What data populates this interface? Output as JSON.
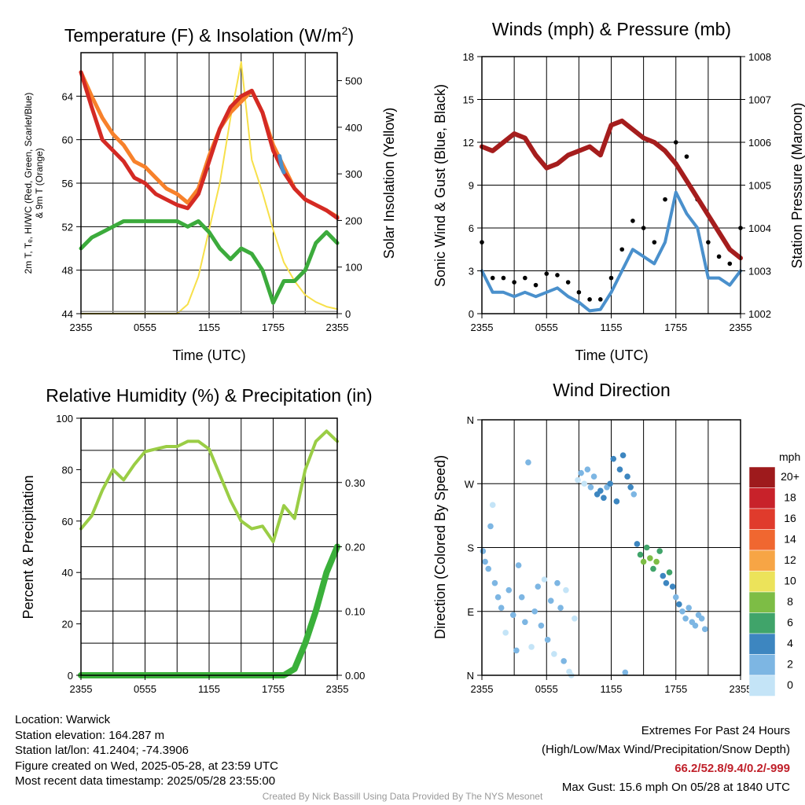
{
  "colors": {
    "red": "#d42a24",
    "orange": "#f7812b",
    "green": "#3cab3c",
    "blue": "#4a90cc",
    "yellow": "#f7e04a",
    "black": "#000000",
    "maroon": "#a51d1d",
    "rh": "#9acd45",
    "precip": "#3ab03a"
  },
  "x_ticks": [
    "2355",
    "0555",
    "1155",
    "1755",
    "2355"
  ],
  "chart_data": [
    {
      "type": "line",
      "title_main": "Temperature (F) & Insolation (W/m",
      "title_sup": "2",
      "title_end": ")",
      "xlabel": "Time (UTC)",
      "ylabel_lines": [
        "2m T, Tₑ, HI/WC (Red, Green, Scarlet/Blue)",
        "& 9m T (Orange)"
      ],
      "y2label": "Solar Insolation (Yellow)",
      "x_range": [
        0,
        24
      ],
      "ylim": [
        44,
        68
      ],
      "y2lim": [
        0,
        560
      ],
      "y_ticks": [
        44,
        48,
        52,
        56,
        60,
        64
      ],
      "y2_ticks": [
        0,
        100,
        200,
        300,
        400,
        500
      ],
      "x": [
        0,
        1,
        2,
        3,
        4,
        5,
        6,
        7,
        8,
        9,
        10,
        11,
        12,
        13,
        14,
        15,
        16,
        17,
        18,
        19,
        20,
        21,
        22,
        23,
        24
      ],
      "series": [
        {
          "name": "2m T (Red)",
          "color": "red",
          "values": [
            66.2,
            63,
            60,
            59,
            58,
            56.5,
            56,
            55,
            54.5,
            54,
            53.7,
            55,
            58,
            61,
            63,
            64,
            64.5,
            62.5,
            59,
            57,
            55.5,
            54.5,
            54,
            53.5,
            52.8
          ]
        },
        {
          "name": "9m T (Orange)",
          "color": "orange",
          "values": [
            66.2,
            64,
            62,
            60.5,
            59.5,
            58,
            57.5,
            56.5,
            55.5,
            55,
            54.2,
            55.5,
            58.5,
            61,
            62.5,
            63.5,
            64.5,
            62.5,
            59.5,
            57.5,
            55.5,
            54.5,
            54,
            53.5,
            52.9
          ]
        },
        {
          "name": "Tₑ (Green)",
          "color": "green",
          "values": [
            50,
            51,
            51.5,
            52,
            52.5,
            52.5,
            52.5,
            52.5,
            52.5,
            52.5,
            52,
            52.5,
            51.5,
            50,
            49,
            50,
            49.5,
            48,
            45,
            47,
            47,
            48,
            50.5,
            51.5,
            50.5
          ]
        },
        {
          "name": "HI/WC (Blue)",
          "color": "blue",
          "x": [
            18.6,
            18.7,
            18.8,
            18.9,
            19.0
          ],
          "values": [
            58.5,
            58,
            57.5,
            57.2,
            57
          ]
        },
        {
          "name": "Solar Insolation (Yellow)",
          "color": "yellow",
          "axis": "y2",
          "values": [
            0,
            0,
            0,
            0,
            0,
            0,
            0,
            0,
            0,
            0,
            20,
            80,
            180,
            280,
            420,
            540,
            330,
            260,
            180,
            110,
            70,
            40,
            25,
            15,
            10
          ]
        }
      ]
    },
    {
      "type": "line",
      "title": "Winds (mph) & Pressure (mb)",
      "xlabel": "Time (UTC)",
      "ylabel": "Sonic Wind & Gust (Blue, Black)",
      "y2label": "Station Pressure (Maroon)",
      "x_range": [
        0,
        24
      ],
      "ylim": [
        0,
        18
      ],
      "y2lim": [
        1002,
        1008
      ],
      "y_ticks": [
        0,
        3,
        6,
        9,
        12,
        15,
        18
      ],
      "y2_ticks": [
        1002,
        1003,
        1004,
        1005,
        1006,
        1007,
        1008
      ],
      "x": [
        0,
        1,
        2,
        3,
        4,
        5,
        6,
        7,
        8,
        9,
        10,
        11,
        12,
        13,
        14,
        15,
        16,
        17,
        18,
        19,
        20,
        21,
        22,
        23,
        24
      ],
      "series": [
        {
          "name": "Sonic Wind (Blue)",
          "color": "blue",
          "values": [
            3,
            1.5,
            1.5,
            1.2,
            1.5,
            1.2,
            1.5,
            1.8,
            1.2,
            0.8,
            0.2,
            0.3,
            1.5,
            3,
            4.5,
            4,
            3.5,
            5,
            8.5,
            7,
            6,
            2.5,
            2.5,
            2,
            3
          ]
        },
        {
          "name": "Gust (Black)",
          "color": "black",
          "kind": "scatter",
          "values": [
            5,
            2.5,
            2.5,
            2.2,
            2.5,
            2,
            2.8,
            2.7,
            2.2,
            1.5,
            1,
            1,
            2.5,
            4.5,
            6.5,
            6,
            5,
            8,
            12,
            11,
            8,
            5,
            4,
            3.5,
            6
          ]
        },
        {
          "name": "Station Pressure (Maroon)",
          "color": "maroon",
          "axis": "y2",
          "values": [
            1005.9,
            1005.8,
            1006,
            1006.2,
            1006.1,
            1005.7,
            1005.4,
            1005.5,
            1005.7,
            1005.8,
            1005.9,
            1005.7,
            1006.4,
            1006.5,
            1006.3,
            1006.1,
            1006,
            1005.8,
            1005.5,
            1005.1,
            1004.7,
            1004.3,
            1003.9,
            1003.5,
            1003.3
          ]
        }
      ]
    },
    {
      "type": "line",
      "title": "Relative Humidity (%) & Precipitation (in)",
      "ylabel": "Percent & Precipitation",
      "x_range": [
        0,
        24
      ],
      "ylim": [
        0,
        100
      ],
      "y2lim": [
        0,
        0.4
      ],
      "y_ticks": [
        0,
        20,
        40,
        60,
        80,
        100
      ],
      "y2_ticks": [
        "0.00",
        "0.10",
        "0.20",
        "0.30"
      ],
      "x": [
        0,
        1,
        2,
        3,
        4,
        5,
        6,
        7,
        8,
        9,
        10,
        11,
        12,
        13,
        14,
        15,
        16,
        17,
        18,
        19,
        20,
        21,
        22,
        23,
        24
      ],
      "series": [
        {
          "name": "Relative Humidity",
          "color": "rh",
          "values": [
            57,
            62,
            72,
            80,
            76,
            82,
            87,
            88,
            89,
            89,
            91,
            91,
            88,
            78,
            68,
            60,
            57,
            58,
            52,
            66,
            61,
            80,
            91,
            95,
            91
          ]
        },
        {
          "name": "Precipitation",
          "color": "precip",
          "axis": "y2",
          "values": [
            0,
            0,
            0,
            0,
            0,
            0,
            0,
            0,
            0,
            0,
            0,
            0,
            0,
            0,
            0,
            0,
            0,
            0,
            0,
            0,
            0.01,
            0.05,
            0.1,
            0.16,
            0.2
          ]
        }
      ]
    },
    {
      "type": "scatter",
      "title": "Wind Direction",
      "ylabel": "Direction (Colored By Speed)",
      "x_range": [
        0,
        24
      ],
      "y_ticks": [
        "N",
        "E",
        "S",
        "W",
        "N"
      ],
      "legend": {
        "unit": "mph",
        "labels": [
          "20+",
          "18",
          "16",
          "14",
          "12",
          "10",
          "8",
          "6",
          "4",
          "2",
          "0"
        ],
        "colors": [
          "#9e1a1c",
          "#c8222a",
          "#e03b2c",
          "#f06730",
          "#f7a545",
          "#ece35a",
          "#7dbd45",
          "#40a46a",
          "#3d86c0",
          "#7db6e3",
          "#c4e4f7"
        ]
      },
      "points": [
        {
          "x": 0.1,
          "dir": 175,
          "spd": 3
        },
        {
          "x": 0.3,
          "dir": 160,
          "spd": 2
        },
        {
          "x": 0.6,
          "dir": 150,
          "spd": 2
        },
        {
          "x": 0.8,
          "dir": 210,
          "spd": 2
        },
        {
          "x": 1.0,
          "dir": 240,
          "spd": 1
        },
        {
          "x": 1.2,
          "dir": 130,
          "spd": 2
        },
        {
          "x": 1.5,
          "dir": 110,
          "spd": 3
        },
        {
          "x": 1.8,
          "dir": 95,
          "spd": 2
        },
        {
          "x": 2.2,
          "dir": 60,
          "spd": 1
        },
        {
          "x": 2.5,
          "dir": 120,
          "spd": 3
        },
        {
          "x": 2.9,
          "dir": 85,
          "spd": 2
        },
        {
          "x": 3.2,
          "dir": 35,
          "spd": 3
        },
        {
          "x": 3.4,
          "dir": 155,
          "spd": 2
        },
        {
          "x": 3.7,
          "dir": 110,
          "spd": 3
        },
        {
          "x": 4.0,
          "dir": 75,
          "spd": 2
        },
        {
          "x": 4.3,
          "dir": 300,
          "spd": 3
        },
        {
          "x": 4.6,
          "dir": 40,
          "spd": 1
        },
        {
          "x": 4.9,
          "dir": 90,
          "spd": 2
        },
        {
          "x": 5.2,
          "dir": 125,
          "spd": 3
        },
        {
          "x": 5.5,
          "dir": 70,
          "spd": 2
        },
        {
          "x": 5.8,
          "dir": 135,
          "spd": 1
        },
        {
          "x": 6.1,
          "dir": 50,
          "spd": 3
        },
        {
          "x": 6.4,
          "dir": 105,
          "spd": 2
        },
        {
          "x": 6.7,
          "dir": 30,
          "spd": 1
        },
        {
          "x": 7.0,
          "dir": 130,
          "spd": 2
        },
        {
          "x": 7.3,
          "dir": 95,
          "spd": 3
        },
        {
          "x": 7.6,
          "dir": 20,
          "spd": 2
        },
        {
          "x": 7.8,
          "dir": 120,
          "spd": 1
        },
        {
          "x": 8.1,
          "dir": 5,
          "spd": 1
        },
        {
          "x": 8.3,
          "dir": 0,
          "spd": 1
        },
        {
          "x": 8.6,
          "dir": 80,
          "spd": 1
        },
        {
          "x": 8.9,
          "dir": 275,
          "spd": 1
        },
        {
          "x": 9.2,
          "dir": 285,
          "spd": 2
        },
        {
          "x": 9.5,
          "dir": 270,
          "spd": 1
        },
        {
          "x": 9.8,
          "dir": 290,
          "spd": 2
        },
        {
          "x": 10.1,
          "dir": 265,
          "spd": 3
        },
        {
          "x": 10.4,
          "dir": 280,
          "spd": 3
        },
        {
          "x": 10.7,
          "dir": 255,
          "spd": 4
        },
        {
          "x": 11.0,
          "dir": 260,
          "spd": 4
        },
        {
          "x": 11.3,
          "dir": 250,
          "spd": 4
        },
        {
          "x": 11.6,
          "dir": 265,
          "spd": 3
        },
        {
          "x": 11.9,
          "dir": 270,
          "spd": 4
        },
        {
          "x": 12.2,
          "dir": 305,
          "spd": 4
        },
        {
          "x": 12.5,
          "dir": 245,
          "spd": 4
        },
        {
          "x": 12.8,
          "dir": 290,
          "spd": 4
        },
        {
          "x": 13.1,
          "dir": 310,
          "spd": 4
        },
        {
          "x": 13.3,
          "dir": 4,
          "spd": 3
        },
        {
          "x": 13.5,
          "dir": 280,
          "spd": 4
        },
        {
          "x": 13.8,
          "dir": 265,
          "spd": 4
        },
        {
          "x": 14.1,
          "dir": 255,
          "spd": 3
        },
        {
          "x": 14.4,
          "dir": 185,
          "spd": 5
        },
        {
          "x": 14.7,
          "dir": 170,
          "spd": 7
        },
        {
          "x": 15.0,
          "dir": 160,
          "spd": 8
        },
        {
          "x": 15.3,
          "dir": 180,
          "spd": 7
        },
        {
          "x": 15.6,
          "dir": 165,
          "spd": 8
        },
        {
          "x": 15.9,
          "dir": 150,
          "spd": 7
        },
        {
          "x": 16.2,
          "dir": 160,
          "spd": 8
        },
        {
          "x": 16.5,
          "dir": 175,
          "spd": 7
        },
        {
          "x": 16.8,
          "dir": 140,
          "spd": 5
        },
        {
          "x": 17.1,
          "dir": 130,
          "spd": 4
        },
        {
          "x": 17.4,
          "dir": 145,
          "spd": 6
        },
        {
          "x": 17.7,
          "dir": 125,
          "spd": 4
        },
        {
          "x": 18.0,
          "dir": 110,
          "spd": 3
        },
        {
          "x": 18.3,
          "dir": 100,
          "spd": 4
        },
        {
          "x": 18.6,
          "dir": 90,
          "spd": 3
        },
        {
          "x": 18.9,
          "dir": 80,
          "spd": 2
        },
        {
          "x": 19.2,
          "dir": 95,
          "spd": 3
        },
        {
          "x": 19.5,
          "dir": 75,
          "spd": 2
        },
        {
          "x": 19.8,
          "dir": 70,
          "spd": 3
        },
        {
          "x": 20.1,
          "dir": 85,
          "spd": 2
        },
        {
          "x": 20.4,
          "dir": 80,
          "spd": 3
        },
        {
          "x": 20.7,
          "dir": 65,
          "spd": 2
        }
      ]
    }
  ],
  "footer": {
    "location": "Location: Warwick",
    "elevation": "Station elevation: 164.287 m",
    "latlon": "Station lat/lon: 41.2404; -74.3906",
    "created": "Figure created on Wed, 2025-05-28, at 23:59 UTC",
    "recent": "Most recent data timestamp: 2025/05/28 23:55:00",
    "extremes_title": "Extremes For Past 24 Hours",
    "extremes_desc": "(High/Low/Max Wind/Precipitation/Snow Depth)",
    "extremes_values": "66.2/52.8/9.4/0.2/-999",
    "max_gust": "Max Gust: 15.6 mph On 05/28 at 1840 UTC",
    "credit": "Created By Nick Bassill Using Data Provided By The NYS Mesonet"
  }
}
